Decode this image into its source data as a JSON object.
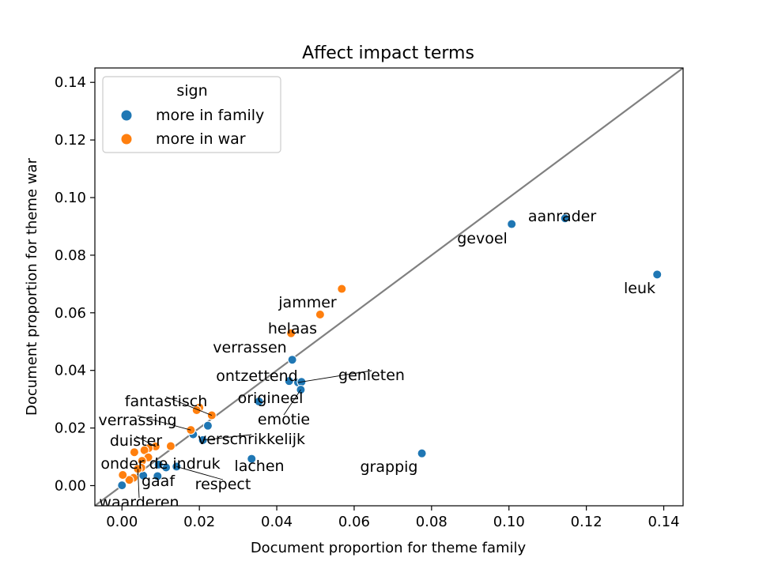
{
  "chart_data": {
    "type": "scatter",
    "title": "Affect impact terms",
    "xlabel": "Document proportion for theme family",
    "ylabel": "Document proportion for theme war",
    "xlim": [
      -0.007,
      0.145
    ],
    "ylim": [
      -0.007,
      0.145
    ],
    "xticks": [
      "0.00",
      "0.02",
      "0.04",
      "0.06",
      "0.08",
      "0.10",
      "0.12",
      "0.14"
    ],
    "yticks": [
      "0.00",
      "0.02",
      "0.04",
      "0.06",
      "0.08",
      "0.10",
      "0.12",
      "0.14"
    ],
    "diagonal": "y = x",
    "grid": false,
    "legend": {
      "title": "sign",
      "position": "top-left",
      "entries": [
        {
          "label": "more in family",
          "color": "#1f77b4"
        },
        {
          "label": "more in war",
          "color": "#ff7f0e"
        }
      ]
    },
    "series": [
      {
        "name": "more in family",
        "color": "#1f77b4",
        "points": [
          {
            "x": 0.1383,
            "y": 0.0733,
            "label": "leuk"
          },
          {
            "x": 0.1145,
            "y": 0.0928,
            "label": "aanrader"
          },
          {
            "x": 0.1007,
            "y": 0.0908,
            "label": "gevoel"
          },
          {
            "x": 0.0775,
            "y": 0.0112,
            "label": "grappig"
          },
          {
            "x": 0.044,
            "y": 0.0437,
            "label": ""
          },
          {
            "x": 0.0455,
            "y": 0.0358,
            "label": "genieten"
          },
          {
            "x": 0.0432,
            "y": 0.0363,
            "label": "ontzettend"
          },
          {
            "x": 0.0464,
            "y": 0.036,
            "label": ""
          },
          {
            "x": 0.0462,
            "y": 0.0333,
            "label": "emotie"
          },
          {
            "x": 0.0354,
            "y": 0.0292,
            "label": "origineel"
          },
          {
            "x": 0.0335,
            "y": 0.0093,
            "label": "lachen"
          },
          {
            "x": 0.0222,
            "y": 0.0208,
            "label": ""
          },
          {
            "x": 0.0209,
            "y": 0.0158,
            "label": "verschrikkelijk"
          },
          {
            "x": 0.0184,
            "y": 0.0178,
            "label": ""
          },
          {
            "x": 0.0141,
            "y": 0.0066,
            "label": "respect"
          },
          {
            "x": 0.0114,
            "y": 0.0063,
            "label": ""
          },
          {
            "x": 0.0095,
            "y": 0.0073,
            "label": "onder de indruk"
          },
          {
            "x": 0.0092,
            "y": 0.0033,
            "label": ""
          },
          {
            "x": 0.0055,
            "y": 0.0035,
            "label": "gaaf"
          },
          {
            "x": 0.0,
            "y": 0.0001,
            "label": ""
          }
        ]
      },
      {
        "name": "more in war",
        "color": "#ff7f0e",
        "points": [
          {
            "x": 0.0568,
            "y": 0.0683,
            "label": "jammer"
          },
          {
            "x": 0.0512,
            "y": 0.0594,
            "label": "helaas"
          },
          {
            "x": 0.0437,
            "y": 0.0529,
            "label": "verrassen"
          },
          {
            "x": 0.0232,
            "y": 0.0244,
            "label": "fantastisch"
          },
          {
            "x": 0.02,
            "y": 0.0271,
            "label": ""
          },
          {
            "x": 0.0193,
            "y": 0.0262,
            "label": ""
          },
          {
            "x": 0.0178,
            "y": 0.0193,
            "label": "verrassing"
          },
          {
            "x": 0.0126,
            "y": 0.0137,
            "label": ""
          },
          {
            "x": 0.0087,
            "y": 0.0136,
            "label": "duister"
          },
          {
            "x": 0.0069,
            "y": 0.013,
            "label": ""
          },
          {
            "x": 0.0058,
            "y": 0.0123,
            "label": ""
          },
          {
            "x": 0.0032,
            "y": 0.0116,
            "label": ""
          },
          {
            "x": 0.0068,
            "y": 0.0098,
            "label": ""
          },
          {
            "x": 0.0052,
            "y": 0.0086,
            "label": ""
          },
          {
            "x": 0.005,
            "y": 0.0062,
            "label": ""
          },
          {
            "x": 0.0041,
            "y": 0.0058,
            "label": "waarderen"
          },
          {
            "x": 0.003,
            "y": 0.0027,
            "label": ""
          },
          {
            "x": 0.0019,
            "y": 0.002,
            "label": ""
          },
          {
            "x": 0.0002,
            "y": 0.0037,
            "label": ""
          }
        ]
      }
    ]
  }
}
